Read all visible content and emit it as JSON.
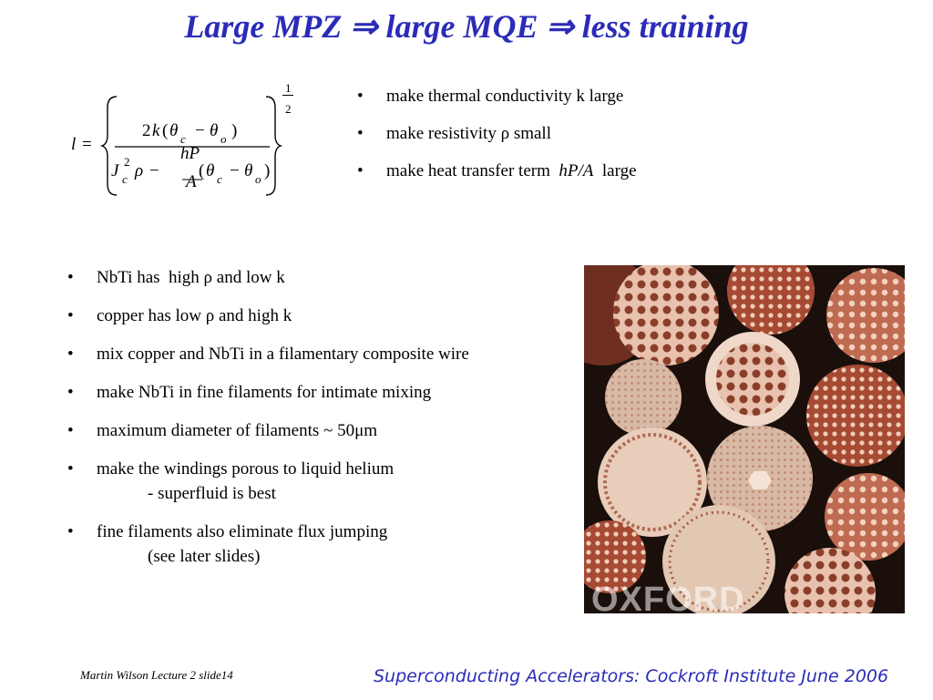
{
  "slide": {
    "title": "Large MPZ ⇒ large MQE ⇒ less training"
  },
  "formula": {
    "lhs": "l",
    "equals": "=",
    "num_coef": "2",
    "num_k": "k",
    "theta": "θ",
    "sub_c": "c",
    "sub_o": "o",
    "minus": "−",
    "J": "J",
    "sup2": "2",
    "rho": "ρ",
    "hP": "hP",
    "A": "A",
    "exp_num": "1",
    "exp_den": "2",
    "lparen": "(",
    "rparen": ")"
  },
  "right_bullets": [
    {
      "marker": "•",
      "text": "make thermal conductivity k large"
    },
    {
      "marker": "•",
      "text": "make resistivity  ρ small"
    },
    {
      "marker": "•",
      "text_before": "make heat transfer term  ",
      "text_italic": "hP/A",
      "text_after": "  large"
    }
  ],
  "left_bullets": [
    {
      "marker": "•",
      "text": "NbTi has  high ρ and low k"
    },
    {
      "marker": "•",
      "text": "copper has low ρ and high k"
    },
    {
      "marker": "•",
      "text": "mix copper and NbTi in a filamentary composite wire"
    },
    {
      "marker": "•",
      "text": "make NbTi in fine filaments for intimate mixing"
    },
    {
      "marker": "•",
      "text": "maximum diameter of filaments ~ 50μm"
    },
    {
      "marker": "•",
      "text": "make the windings porous to liquid helium",
      "sub": "- superfluid is best"
    },
    {
      "marker": "•",
      "text": "fine filaments also eliminate flux jumping",
      "sub": "(see later slides)"
    }
  ],
  "photo": {
    "watermark": "OXFORD"
  },
  "footer": {
    "left": "Martin Wilson Lecture 2 slide14",
    "right": "Superconducting Accelerators:  Cockroft Institute June 2006"
  },
  "colors": {
    "title": "#2b2bb8",
    "footer_right": "#2b2bb8",
    "photo_bg": "#1a0f0b"
  }
}
